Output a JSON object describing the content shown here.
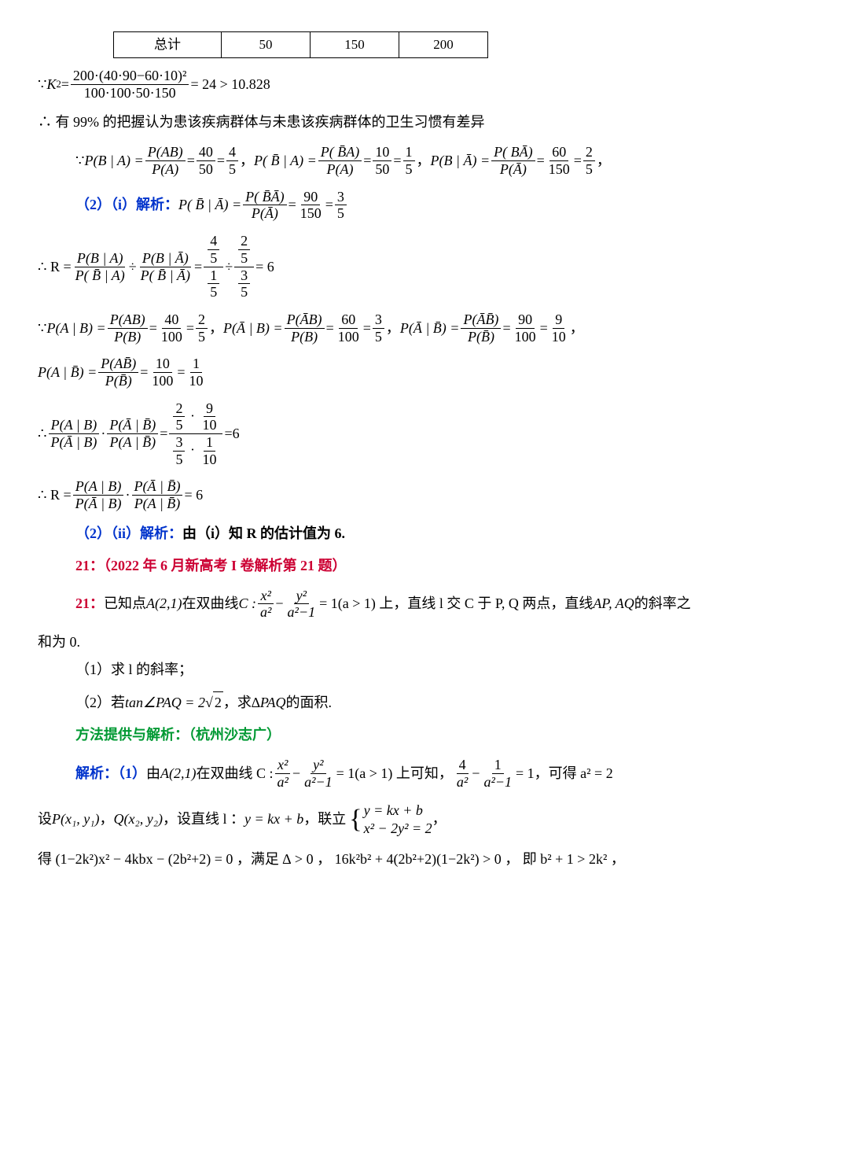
{
  "table": {
    "cells": [
      "总计",
      "50",
      "150",
      "200"
    ]
  },
  "eq_k2": {
    "pre": "∵ ",
    "sym": "K",
    "sup": "2",
    "eq": " = ",
    "num": "200·(40·90−60·10)²",
    "den": "100·100·50·150",
    "tail": " = 24 > 10.828"
  },
  "line99": "∴ 有 99% 的把握认为患该疾病群体与未患该疾病群体的卫生习惯有差异",
  "p_row1": {
    "pre": "∵ ",
    "a": {
      "lhs": "P(B | A) = ",
      "n1": "P(AB)",
      "d1": "P(A)",
      "eq1": " = ",
      "n2": "40",
      "d2": "50",
      "eq2": " = ",
      "n3": "4",
      "d3": "5",
      "post": " ，  "
    },
    "b": {
      "lhs": "P( B̄ | A) = ",
      "n1": "P( B̄A)",
      "d1": "P(A)",
      "eq1": " = ",
      "n2": "10",
      "d2": "50",
      "eq2": " = ",
      "n3": "1",
      "d3": "5",
      "post": " ，  "
    },
    "c": {
      "lhs": "P(B | Ā) = ",
      "n1": "P( BĀ)",
      "d1": "P(Ā)",
      "eq1": " = ",
      "n2": "60",
      "d2": "150",
      "eq2": " = ",
      "n3": "2",
      "d3": "5",
      "post": " ，"
    }
  },
  "part2i_label": "（2）（i）解析：",
  "part2i_eq": {
    "lhs": "P( B̄ | Ā) = ",
    "n1": "P( B̄Ā)",
    "d1": "P(Ā)",
    "eq1": " = ",
    "n2": "90",
    "d2": "150",
    "eq2": " = ",
    "n3": "3",
    "d3": "5"
  },
  "R1": {
    "pre": "∴ R = ",
    "f1n": "P(B | A)",
    "f1d": "P( B̄ | A)",
    "div": " ÷ ",
    "f2n": "P(B | Ā)",
    "f2d": "P( B̄ | Ā)",
    "eq": " = ",
    "rn1": "4",
    "rd1": "5",
    "rn2": "1",
    "rd2": "5",
    "div2": " ÷ ",
    "rn3": "2",
    "rd3": "5",
    "rn4": "3",
    "rd4": "5",
    "tail": " = 6"
  },
  "p_row2": {
    "pre": "∵ ",
    "a": {
      "lhs": "P(A | B) = ",
      "n1": "P(AB)",
      "d1": "P(B)",
      "eq1": " = ",
      "n2": "40",
      "d2": "100",
      "eq2": " = ",
      "n3": "2",
      "d3": "5",
      "post": " ，  "
    },
    "b": {
      "lhs": "P(Ā | B) = ",
      "n1": "P(ĀB)",
      "d1": "P(B)",
      "eq1": " = ",
      "n2": "60",
      "d2": "100",
      "eq2": " = ",
      "n3": "3",
      "d3": "5",
      "post": " ，  "
    },
    "c": {
      "lhs": "P(Ā | B̄) = ",
      "n1": "P(ĀB̄)",
      "d1": "P(B̄)",
      "eq1": " = ",
      "n2": "90",
      "d2": "100",
      "eq2": " = ",
      "n3": "9",
      "d3": "10",
      "post": " ，"
    }
  },
  "p_row3": {
    "lhs": "P(A | B̄) = ",
    "n1": "P(AB̄)",
    "d1": "P(B̄)",
    "eq1": " = ",
    "n2": "10",
    "d2": "100",
    "eq2": " = ",
    "n3": "1",
    "d3": "10"
  },
  "ratio2": {
    "pre": "∴ ",
    "f1n": "P(A | B)",
    "f1d": "P(Ā | B)",
    "dot": " · ",
    "f2n": "P(Ā | B̄)",
    "f2d": "P(A | B̄)",
    "eq": " = ",
    "rn1": "2",
    "rd1": "5",
    "rn2": "9",
    "rd2": "10",
    "rn3": "3",
    "rd3": "5",
    "rn4": "1",
    "rd4": "10",
    "tail": "=6"
  },
  "R2": {
    "pre": "∴ R = ",
    "f1n": "P(A | B)",
    "f1d": "P(Ā | B)",
    "dot": " · ",
    "f2n": "P(Ā | B̄)",
    "f2d": "P(A | B̄)",
    "tail": " = 6"
  },
  "part2ii": {
    "label": "（2）（ii）解析：",
    "text": "由（i）知 R 的估计值为 6."
  },
  "title21": "21：（2022 年 6 月新高考 I 卷解析第 21 题）",
  "q21": {
    "pre": "21：",
    "t1": "已知点 ",
    "A": "A(2,1)",
    "t2": " 在双曲线 ",
    "C": "C : ",
    "fn1": "x²",
    "fd1": "a²",
    "minus": " − ",
    "fn2": "y²",
    "fd2": "a²−1",
    "t3": " = 1(a > 1) 上，直线 l 交 C 于 P, Q 两点，直线 ",
    "AP": "AP, AQ",
    "t4": " 的斜率之",
    "t5": "和为 0."
  },
  "q21_1": "（1）求 l 的斜率；",
  "q21_2": {
    "pre": "（2）若 ",
    "tan": "tan∠PAQ = 2",
    "sq": "2",
    "post": " ，求 ",
    "tri": "∆PAQ",
    "tail": " 的面积."
  },
  "method": "方法提供与解析：（杭州沙志广）",
  "sol1": {
    "label": "解析：（1）",
    "t1": "由 ",
    "A": "A(2,1)",
    "t2": " 在双曲线 C : ",
    "fn1": "x²",
    "fd1": "a²",
    "minus": " − ",
    "fn2": "y²",
    "fd2": "a²−1",
    "t3": " = 1(a > 1) 上可知，    ",
    "fn3": "4",
    "fd3": "a²",
    "minus2": " − ",
    "fn4": "1",
    "fd4": "a²−1",
    "t4": " = 1，可得 a² = 2"
  },
  "sol2": {
    "t1": "设 ",
    "P": "P(x₁, y₁)",
    "c1": " ，",
    "Q": "Q(x₂, y₂)",
    "t2": " ，设直线 l ： ",
    "line": "y = kx + b",
    "t3": " ，联立",
    "sys_top": "y = kx + b",
    "sys_bot": "x² − 2y² = 2",
    "post": "，"
  },
  "sol3": "得 (1−2k²)x² − 4kbx − (2b²+2) = 0 ，满足 ∆ > 0 ，  16k²b² + 4(2b²+2)(1−2k²) > 0 ，  即 b² + 1 > 2k² ，"
}
